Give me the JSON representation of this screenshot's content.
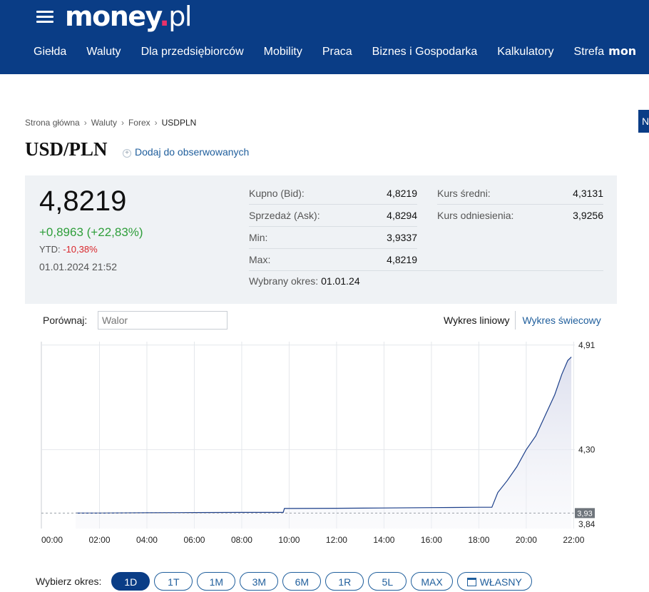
{
  "header": {
    "logo_main": "money",
    "logo_dot": ".",
    "logo_tld": "pl",
    "nav": [
      "Giełda",
      "Waluty",
      "Dla przedsiębiorców",
      "Mobility",
      "Praca",
      "Biznes i Gospodarka",
      "Kalkulatory",
      "Strefa"
    ],
    "nav_suffix_logo": "mon",
    "side_tab": "N"
  },
  "breadcrumb": [
    "Strona główna",
    "Waluty",
    "Forex",
    "USDPLN"
  ],
  "page": {
    "title": "USD/PLN",
    "watch_label": "Dodaj do obserwowanych"
  },
  "quote": {
    "price": "4,8219",
    "change": "+0,8963 (+22,83%)",
    "ytd_label": "YTD:",
    "ytd_value": "-10,38%",
    "datetime": "01.01.2024 21:52",
    "stats": [
      {
        "label": "Kupno (Bid):",
        "value": "4,8219"
      },
      {
        "label": "Sprzedaż (Ask):",
        "value": "4,8294"
      },
      {
        "label": "Min:",
        "value": "3,9337"
      },
      {
        "label": "Max:",
        "value": "4,8219"
      }
    ],
    "stats2": [
      {
        "label": "Kurs średni:",
        "value": "4,3131"
      },
      {
        "label": "Kurs odniesienia:",
        "value": "3,9256"
      }
    ],
    "period_label": "Wybrany okres:",
    "period_value": "01.01.24",
    "colors": {
      "positive": "#2e9e3a",
      "negative": "#d9262b"
    }
  },
  "chart_controls": {
    "compare_label": "Porównaj:",
    "compare_placeholder": "Walor",
    "type_line": "Wykres liniowy",
    "type_candle": "Wykres świecowy"
  },
  "chart_data": {
    "type": "area",
    "x_ticks": [
      "00:00",
      "02:00",
      "04:00",
      "06:00",
      "08:00",
      "10:00",
      "12:00",
      "14:00",
      "16:00",
      "18:00",
      "20:00",
      "22:00"
    ],
    "y_ticks": [
      "4,91",
      "4,30",
      "3,84"
    ],
    "current_marker": "3,93",
    "ylim": [
      3.84,
      4.91
    ],
    "grid": true,
    "series": [
      {
        "x": [
          1.0,
          2.0,
          4.0,
          6.0,
          8.0,
          9.75,
          9.8,
          12.0,
          14.0,
          16.0,
          18.0,
          18.55,
          18.8,
          19.2,
          19.6,
          20.0,
          20.4,
          20.8,
          21.2,
          21.5,
          21.75,
          21.9
        ],
        "y": [
          3.93,
          3.93,
          3.932,
          3.933,
          3.934,
          3.934,
          3.957,
          3.958,
          3.96,
          3.962,
          3.964,
          3.964,
          4.05,
          4.12,
          4.2,
          4.3,
          4.38,
          4.5,
          4.62,
          4.74,
          4.82,
          4.84
        ]
      }
    ]
  },
  "periods": {
    "label": "Wybierz okres:",
    "buttons": [
      "1D",
      "1T",
      "1M",
      "3M",
      "6M",
      "1R",
      "5L",
      "MAX"
    ],
    "custom": "WŁASNY",
    "active_index": 0
  }
}
